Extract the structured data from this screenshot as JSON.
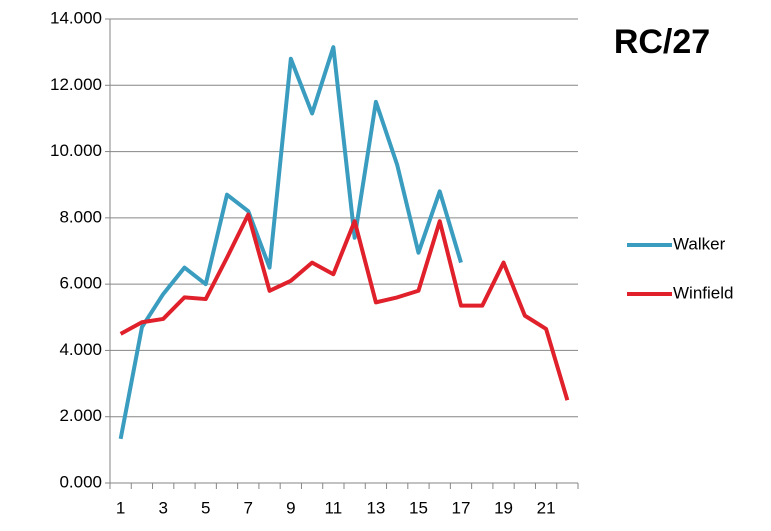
{
  "chart_data": {
    "type": "line",
    "title": "RC/27",
    "categories": [
      "1",
      null,
      "3",
      null,
      "5",
      null,
      "7",
      null,
      "9",
      null,
      "11",
      null,
      "13",
      null,
      "15",
      null,
      "17",
      null,
      "19",
      null,
      "21",
      null
    ],
    "series": [
      {
        "name": "Walker",
        "color": "#3a9dc0",
        "values": [
          1.33,
          4.7,
          5.7,
          6.5,
          6.0,
          8.7,
          8.2,
          6.5,
          12.8,
          11.15,
          13.15,
          7.4,
          11.5,
          9.6,
          6.95,
          8.8,
          6.65,
          null,
          null,
          null,
          null,
          null
        ]
      },
      {
        "name": "Winfield",
        "color": "#e0202a",
        "values": [
          4.5,
          4.85,
          4.95,
          5.6,
          5.55,
          6.8,
          8.1,
          5.8,
          6.1,
          6.65,
          6.3,
          7.9,
          5.45,
          5.6,
          5.8,
          7.9,
          5.35,
          5.35,
          6.65,
          5.05,
          4.65,
          2.5
        ]
      }
    ],
    "ylim": [
      0,
      14
    ],
    "yticks": [
      {
        "value": 0,
        "label": "0.000"
      },
      {
        "value": 2,
        "label": "2.000"
      },
      {
        "value": 4,
        "label": "4.000"
      },
      {
        "value": 6,
        "label": "6.000"
      },
      {
        "value": 8,
        "label": "8.000"
      },
      {
        "value": 10,
        "label": "10.000"
      },
      {
        "value": 12,
        "label": "12.000"
      },
      {
        "value": 14,
        "label": "14.000"
      }
    ],
    "grid": true,
    "legend": "right"
  }
}
